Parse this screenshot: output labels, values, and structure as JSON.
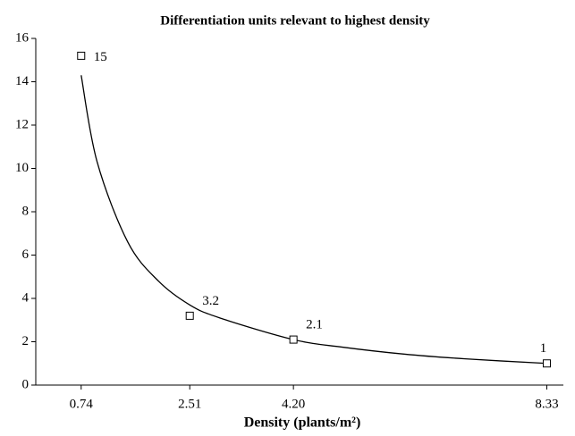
{
  "chart_data": {
    "type": "scatter",
    "title": "Differentiation units relevant to highest density",
    "xlabel": "Density (plants/m²)",
    "points": {
      "x": [
        0.74,
        2.51,
        4.2,
        8.33
      ],
      "values": [
        15.2,
        3.2,
        2.1,
        1
      ],
      "value_labels": [
        "15",
        "3.2",
        "2.1",
        "1"
      ],
      "color": "#000000"
    },
    "curve": {
      "x": [
        0.74,
        1,
        1.5,
        2,
        2.51,
        3,
        4.2,
        5,
        6,
        7,
        8.33
      ],
      "values": [
        14.3,
        10.3,
        6.6,
        4.8,
        3.7,
        3.1,
        2.1,
        1.75,
        1.43,
        1.21,
        1.0
      ],
      "color": "#000000"
    },
    "xlim": [
      0,
      8.6
    ],
    "xticks": [
      0.74,
      2.51,
      {
        "value": 4.2,
        "label": "4.20"
      },
      8.33
    ],
    "ylim": [
      0,
      16
    ],
    "yticks": [
      0,
      2,
      4,
      6,
      8,
      10,
      12,
      14,
      16
    ]
  }
}
